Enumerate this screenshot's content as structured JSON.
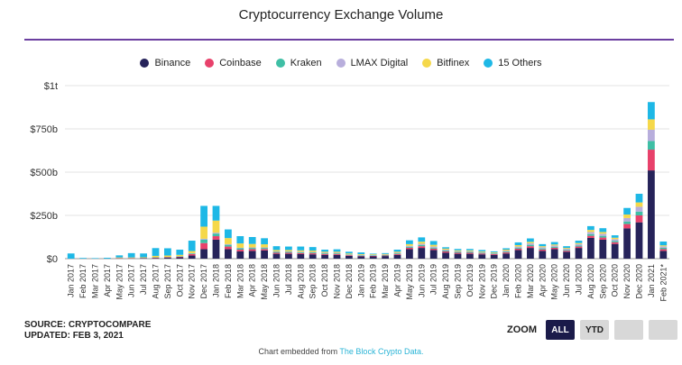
{
  "chart_data": {
    "type": "bar",
    "stacked": true,
    "title": "Cryptocurrency Exchange Volume",
    "xlabel": "",
    "ylabel": "",
    "ylim": [
      0,
      1000
    ],
    "yticks": [
      0,
      250,
      500,
      750,
      1000
    ],
    "ytick_labels": [
      "$0",
      "$250b",
      "$500b",
      "$750b",
      "$1t"
    ],
    "grid": true,
    "legend_position": "top",
    "categories": [
      "Jan 2017",
      "Feb 2017",
      "Mar 2017",
      "Apr 2017",
      "May 2017",
      "Jun 2017",
      "Jul 2017",
      "Aug 2017",
      "Sep 2017",
      "Oct 2017",
      "Nov 2017",
      "Dec 2017",
      "Jan 2018",
      "Feb 2018",
      "Mar 2018",
      "Apr 2018",
      "May 2018",
      "Jun 2018",
      "Jul 2018",
      "Aug 2018",
      "Sep 2018",
      "Oct 2018",
      "Nov 2018",
      "Dec 2018",
      "Jan 2019",
      "Feb 2019",
      "Mar 2019",
      "Apr 2019",
      "May 2019",
      "Jun 2019",
      "Jul 2019",
      "Aug 2019",
      "Sep 2019",
      "Oct 2019",
      "Nov 2019",
      "Dec 2019",
      "Jan 2020",
      "Feb 2020",
      "Mar 2020",
      "Apr 2020",
      "May 2020",
      "Jun 2020",
      "Jul 2020",
      "Aug 2020",
      "Sep 2020",
      "Oct 2020",
      "Nov 2020",
      "Dec 2020",
      "Jan 2021",
      "Feb 2021*"
    ],
    "series": [
      {
        "name": "Binance",
        "color": "#26235a",
        "values": [
          0,
          0,
          0,
          0,
          1,
          1,
          2,
          3,
          5,
          8,
          18,
          55,
          110,
          55,
          42,
          45,
          48,
          28,
          28,
          26,
          25,
          22,
          22,
          16,
          14,
          13,
          15,
          22,
          55,
          62,
          50,
          35,
          28,
          28,
          25,
          22,
          30,
          50,
          62,
          45,
          55,
          40,
          62,
          120,
          110,
          85,
          175,
          210,
          510,
          45
        ]
      },
      {
        "name": "Coinbase",
        "color": "#e8416b",
        "values": [
          0,
          0,
          0,
          0,
          2,
          2,
          2,
          3,
          3,
          3,
          8,
          35,
          20,
          15,
          10,
          10,
          8,
          6,
          6,
          6,
          6,
          5,
          5,
          4,
          3,
          3,
          3,
          5,
          8,
          10,
          8,
          7,
          6,
          6,
          5,
          4,
          6,
          8,
          10,
          8,
          8,
          6,
          8,
          12,
          12,
          10,
          25,
          40,
          120,
          10
        ]
      },
      {
        "name": "Kraken",
        "color": "#3fbfa5",
        "values": [
          0,
          0,
          0,
          0,
          1,
          1,
          1,
          2,
          2,
          2,
          4,
          20,
          15,
          10,
          8,
          7,
          6,
          5,
          5,
          5,
          5,
          4,
          4,
          3,
          3,
          3,
          3,
          4,
          6,
          7,
          6,
          5,
          5,
          5,
          4,
          3,
          5,
          6,
          8,
          6,
          6,
          5,
          6,
          10,
          10,
          8,
          15,
          22,
          50,
          8
        ]
      },
      {
        "name": "LMAX Digital",
        "color": "#b8aedc",
        "values": [
          0,
          0,
          0,
          0,
          0,
          0,
          0,
          0,
          0,
          1,
          2,
          5,
          5,
          4,
          3,
          3,
          3,
          3,
          3,
          3,
          3,
          3,
          3,
          2,
          2,
          2,
          2,
          3,
          5,
          7,
          6,
          5,
          4,
          4,
          4,
          3,
          5,
          6,
          9,
          7,
          7,
          6,
          8,
          12,
          12,
          10,
          20,
          28,
          65,
          8
        ]
      },
      {
        "name": "Bitfinex",
        "color": "#f5d84a",
        "values": [
          0,
          0,
          0,
          0,
          3,
          3,
          3,
          8,
          8,
          8,
          12,
          70,
          70,
          35,
          25,
          20,
          18,
          8,
          8,
          8,
          8,
          6,
          6,
          5,
          4,
          4,
          4,
          6,
          10,
          12,
          10,
          6,
          5,
          5,
          4,
          4,
          6,
          8,
          8,
          6,
          6,
          5,
          6,
          12,
          10,
          8,
          20,
          25,
          60,
          6
        ]
      },
      {
        "name": "15 Others",
        "color": "#1eb8e6",
        "values": [
          30,
          4,
          3,
          5,
          12,
          25,
          22,
          45,
          42,
          30,
          60,
          120,
          85,
          50,
          42,
          40,
          35,
          22,
          20,
          22,
          20,
          12,
          14,
          10,
          10,
          4,
          5,
          12,
          22,
          25,
          22,
          8,
          8,
          8,
          8,
          6,
          8,
          16,
          20,
          12,
          14,
          10,
          14,
          22,
          22,
          14,
          38,
          50,
          100,
          22
        ]
      }
    ]
  },
  "footer": {
    "source": "SOURCE: CRYPTOCOMPARE",
    "updated": "UPDATED: FEB 3, 2021"
  },
  "zoom": {
    "label": "ZOOM",
    "buttons": [
      "ALL",
      "YTD"
    ]
  },
  "embed": {
    "prefix": "Chart embedded from ",
    "link": "The Block Crypto Data."
  }
}
